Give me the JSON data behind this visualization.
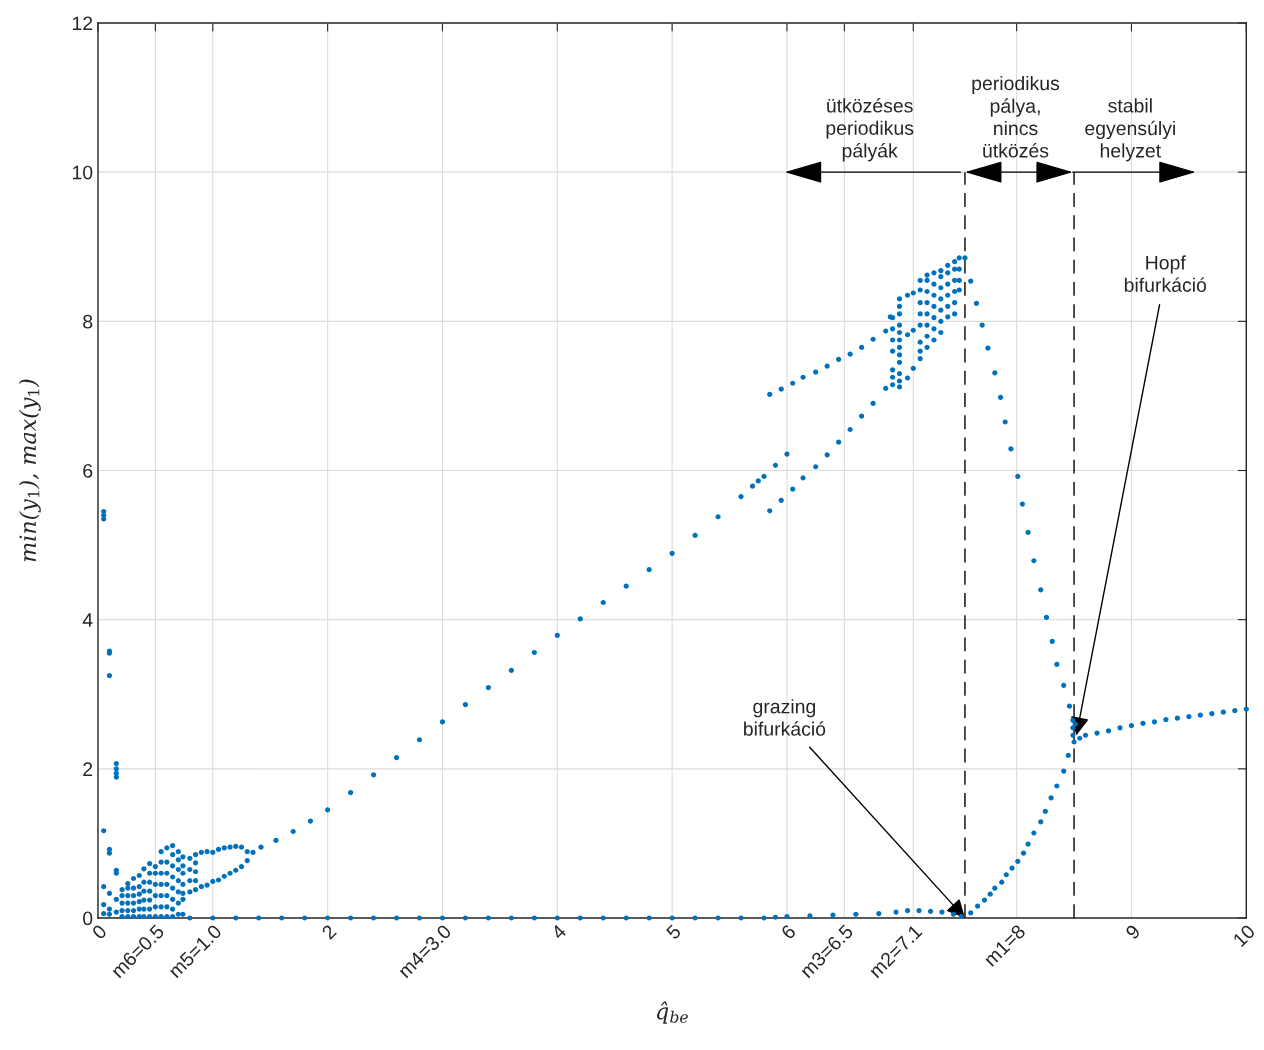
{
  "chart_data": {
    "type": "scatter",
    "xlabel": "q̂$_{be}$",
    "ylabel": "min(y$_{1}$), max(y$_{1}$)",
    "xlim": [
      0,
      10
    ],
    "ylim": [
      0,
      12
    ],
    "xticks": [
      0,
      {
        "value": 0.5,
        "label": "m6=0.5"
      },
      {
        "value": 1.0,
        "label": "m5=1.0"
      },
      2,
      {
        "value": 3.0,
        "label": "m4=3.0"
      },
      4,
      5,
      6,
      {
        "value": 6.5,
        "label": "m3=6.5"
      },
      {
        "value": 7.1,
        "label": "m2=7.1"
      },
      {
        "value": 8,
        "label": "m1=8"
      },
      9,
      10
    ],
    "yticks": [
      0,
      2,
      4,
      6,
      8,
      10,
      12
    ],
    "grid": true,
    "marker": "circle",
    "series": [
      {
        "color": "#0072bd",
        "x": [
          0.05,
          0.05,
          0.05,
          0.1,
          0.1,
          0.1,
          0.16,
          0.16,
          0.16,
          0.16,
          0.05,
          0.1,
          0.1,
          0.16,
          0.16,
          0.05,
          0.1,
          0.16,
          0.05,
          0.1,
          0.05,
          0.1,
          0.16
        ],
        "values": [
          5.45,
          5.4,
          5.35,
          3.58,
          3.55,
          3.25,
          2.07,
          2,
          1.94,
          1.89,
          1.17,
          0.92,
          0.87,
          0.64,
          0.6,
          0.42,
          0.33,
          0.25,
          0.18,
          0.12,
          0.06,
          0.05,
          0.08
        ]
      },
      {
        "color": "#0072bd",
        "x": [
          0.21,
          0.21,
          0.21,
          0.21,
          0.21,
          0.26,
          0.26,
          0.26,
          0.26,
          0.26,
          0.26,
          0.31,
          0.31,
          0.31,
          0.31,
          0.31,
          0.31,
          0.36,
          0.36,
          0.36,
          0.36,
          0.36,
          0.36,
          0.4,
          0.4,
          0.4,
          0.4,
          0.4,
          0.4,
          0.45,
          0.45,
          0.45,
          0.45,
          0.45,
          0.45,
          0.45,
          0.5,
          0.5,
          0.5,
          0.5,
          0.5,
          0.5,
          0.55,
          0.55,
          0.55,
          0.55,
          0.55,
          0.55,
          0.55,
          0.6,
          0.6,
          0.6,
          0.6,
          0.6,
          0.6,
          0.6,
          0.65,
          0.65,
          0.65,
          0.65,
          0.65,
          0.65,
          0.65,
          0.65,
          0.7,
          0.7,
          0.7,
          0.7,
          0.7,
          0.7,
          0.7,
          0.74,
          0.74,
          0.74,
          0.74,
          0.74,
          0.74,
          0.74,
          0.8,
          0.8,
          0.8,
          0.8,
          0.85,
          0.85,
          0.85,
          0.85,
          0.85
        ],
        "values": [
          0.02,
          0.1,
          0.2,
          0.3,
          0.38,
          0.02,
          0.1,
          0.2,
          0.3,
          0.4,
          0.46,
          0.02,
          0.1,
          0.2,
          0.3,
          0.4,
          0.53,
          0.02,
          0.12,
          0.22,
          0.32,
          0.42,
          0.57,
          0.02,
          0.12,
          0.24,
          0.36,
          0.48,
          0.66,
          0.02,
          0.12,
          0.24,
          0.36,
          0.48,
          0.6,
          0.73,
          0.02,
          0.15,
          0.3,
          0.45,
          0.6,
          0.69,
          0.02,
          0.15,
          0.3,
          0.45,
          0.6,
          0.75,
          0.89,
          0.02,
          0.15,
          0.3,
          0.45,
          0.6,
          0.75,
          0.94,
          0.02,
          0.12,
          0.25,
          0.4,
          0.55,
          0.7,
          0.85,
          0.97,
          0.05,
          0.2,
          0.35,
          0.5,
          0.65,
          0.78,
          0.89,
          0.05,
          0.25,
          0.33,
          0.45,
          0.6,
          0.7,
          0.82,
          0.35,
          0.5,
          0.65,
          0.8,
          0.38,
          0.5,
          0.62,
          0.74,
          0.85
        ]
      },
      {
        "color": "#0072bd",
        "x": [
          0.9,
          0.95,
          1.0,
          1.05,
          1.1,
          1.15,
          1.2,
          1.25,
          1.3,
          1.35,
          0.9,
          0.95,
          1.0,
          1.05,
          1.1,
          1.15,
          1.2,
          1.25,
          1.3
        ],
        "values": [
          0.88,
          0.89,
          0.88,
          0.92,
          0.94,
          0.95,
          0.96,
          0.95,
          0.89,
          0.88,
          0.42,
          0.44,
          0.49,
          0.51,
          0.56,
          0.6,
          0.64,
          0.69,
          0.77
        ]
      },
      {
        "color": "#0072bd",
        "x": [
          1.42,
          1.55,
          1.7,
          1.85,
          2.0,
          2.2,
          2.4,
          2.6,
          2.8,
          3.0,
          3.2,
          3.4,
          3.6,
          3.8,
          4.0,
          4.2,
          4.4,
          4.6,
          4.8,
          5.0,
          5.2,
          5.4,
          5.6,
          5.7,
          5.75,
          5.8,
          5.9,
          6.0
        ],
        "values": [
          0.95,
          1.04,
          1.16,
          1.3,
          1.45,
          1.68,
          1.92,
          2.15,
          2.39,
          2.63,
          2.86,
          3.09,
          3.32,
          3.56,
          3.79,
          4.01,
          4.23,
          4.45,
          4.67,
          4.89,
          5.13,
          5.38,
          5.65,
          5.79,
          5.86,
          5.92,
          6.07,
          6.22
        ]
      },
      {
        "color": "#0072bd",
        "x": [
          5.85,
          5.95,
          6.05,
          6.14,
          6.25,
          6.35,
          6.45,
          6.55,
          6.65,
          6.75,
          6.86
        ],
        "values": [
          5.46,
          5.6,
          5.75,
          5.9,
          6.05,
          6.21,
          6.38,
          6.55,
          6.73,
          6.9,
          7.1
        ]
      },
      {
        "color": "#0072bd",
        "x": [
          5.85,
          5.95,
          6.05,
          6.14,
          6.25,
          6.35,
          6.45,
          6.55,
          6.65,
          6.75,
          6.86,
          6.9
        ],
        "values": [
          7.02,
          7.09,
          7.17,
          7.25,
          7.32,
          7.4,
          7.49,
          7.56,
          7.65,
          7.76,
          7.87,
          8.06
        ]
      },
      {
        "color": "#0072bd",
        "x": [
          6.92,
          6.92,
          6.92,
          6.92,
          6.92,
          6.92,
          6.92,
          6.98,
          6.98,
          6.98,
          6.98,
          6.98,
          6.98,
          6.98,
          6.98,
          6.98,
          6.98,
          6.98,
          6.98,
          7.05,
          7.05,
          7.05,
          7.1,
          7.1,
          7.1,
          7.16,
          7.16,
          7.16,
          7.16,
          7.16,
          7.16,
          7.16,
          7.16,
          7.22,
          7.22,
          7.22,
          7.22,
          7.22,
          7.22,
          7.22,
          7.22,
          7.28,
          7.28,
          7.28,
          7.28,
          7.28,
          7.28,
          7.28,
          7.34,
          7.34,
          7.34,
          7.34,
          7.34,
          7.34,
          7.34,
          7.4,
          7.4,
          7.4,
          7.4,
          7.4,
          7.4,
          7.46,
          7.46,
          7.46,
          7.46,
          7.46,
          7.46,
          7.5,
          7.5,
          7.5,
          7.5,
          7.55
        ],
        "values": [
          7.15,
          7.25,
          7.35,
          7.6,
          7.75,
          7.9,
          8.05,
          7.12,
          7.2,
          7.3,
          7.45,
          7.55,
          7.65,
          7.75,
          7.85,
          7.95,
          8.1,
          8.2,
          8.3,
          7.24,
          7.82,
          8.35,
          7.37,
          7.88,
          8.38,
          7.5,
          7.6,
          7.72,
          7.95,
          8.1,
          8.25,
          8.42,
          8.55,
          7.65,
          7.8,
          7.95,
          8.1,
          8.25,
          8.4,
          8.55,
          8.62,
          7.75,
          7.9,
          8.05,
          8.2,
          8.35,
          8.5,
          8.65,
          7.85,
          8.0,
          8.15,
          8.3,
          8.45,
          8.6,
          8.68,
          8.06,
          8.2,
          8.35,
          8.5,
          8.65,
          8.75,
          8.1,
          8.25,
          8.4,
          8.55,
          8.7,
          8.8,
          8.42,
          8.55,
          8.7,
          8.85,
          8.85
        ]
      },
      {
        "color": "#0072bd",
        "x": [
          7.6,
          7.65,
          7.7,
          7.75,
          7.81,
          7.86,
          7.9,
          7.95,
          8.01,
          8.05,
          8.1,
          8.15,
          8.21,
          8.26,
          8.31,
          8.35,
          8.41,
          8.46,
          8.51,
          8.49,
          8.49,
          8.49
        ],
        "values": [
          8.54,
          8.24,
          7.95,
          7.64,
          7.31,
          6.98,
          6.65,
          6.29,
          5.92,
          5.55,
          5.17,
          4.79,
          4.4,
          4.03,
          3.71,
          3.4,
          3.12,
          2.84,
          2.6,
          2.65,
          2.55,
          2.45
        ]
      },
      {
        "color": "#0072bd",
        "x": [
          7.6,
          7.66,
          7.72,
          7.77,
          7.81,
          7.87,
          7.91,
          7.96,
          8.01,
          8.06,
          8.1,
          8.15,
          8.21,
          8.25,
          8.3,
          8.35,
          8.41,
          8.45,
          8.5,
          8.55
        ],
        "values": [
          0.07,
          0.16,
          0.24,
          0.32,
          0.4,
          0.48,
          0.58,
          0.67,
          0.76,
          0.87,
          0.99,
          1.14,
          1.29,
          1.43,
          1.61,
          1.77,
          1.97,
          2.18,
          2.36,
          2.41
        ]
      },
      {
        "color": "#0072bd",
        "x": [
          8.6,
          8.7,
          8.8,
          8.9,
          9.0,
          9.1,
          9.2,
          9.3,
          9.4,
          9.5,
          9.6,
          9.7,
          9.8,
          9.9,
          10.0
        ],
        "values": [
          2.45,
          2.48,
          2.51,
          2.55,
          2.58,
          2.61,
          2.63,
          2.66,
          2.68,
          2.7,
          2.72,
          2.74,
          2.76,
          2.78,
          2.8
        ]
      },
      {
        "color": "#0072bd",
        "x": [
          0.8,
          1.0,
          1.2,
          1.4,
          1.6,
          1.8,
          2.0,
          2.2,
          2.4,
          2.6,
          2.8,
          3.0,
          3.2,
          3.4,
          3.6,
          3.8,
          4.0,
          4.2,
          4.4,
          4.6,
          4.8,
          5.0,
          5.2,
          5.4,
          5.6,
          5.8,
          5.9,
          6.0,
          6.2,
          6.4,
          6.6,
          6.8,
          6.95,
          7.05,
          7.15,
          7.25,
          7.35,
          7.45,
          7.52
        ],
        "values": [
          0,
          0,
          0,
          0,
          0,
          0,
          0,
          0,
          0,
          0,
          0,
          0,
          0,
          0,
          0,
          0,
          0,
          0,
          0,
          0,
          0,
          0,
          0,
          0,
          0,
          0,
          0.01,
          0.02,
          0.03,
          0.04,
          0.05,
          0.06,
          0.08,
          0.1,
          0.1,
          0.09,
          0.08,
          0.05,
          0.02
        ]
      }
    ],
    "ref_lines": [
      {
        "axis": "x",
        "value": 7.55,
        "color": "#000000",
        "line_style": "dashed"
      },
      {
        "axis": "x",
        "value": 8.5,
        "color": "#000000",
        "line_style": "dashed"
      }
    ],
    "annotations": [
      "ütközéses\nperiodikus\npályák",
      "periodikus\npálya,\nnincs\nütközés",
      "stabil\negyensúlyi\nhelyzet",
      {
        "text": "grazing\nbifurkáció",
        "x": 7.55,
        "y": 0
      },
      {
        "text": "Hopf\nbifurkáció",
        "x": 8.52,
        "y": 2.45
      }
    ]
  }
}
